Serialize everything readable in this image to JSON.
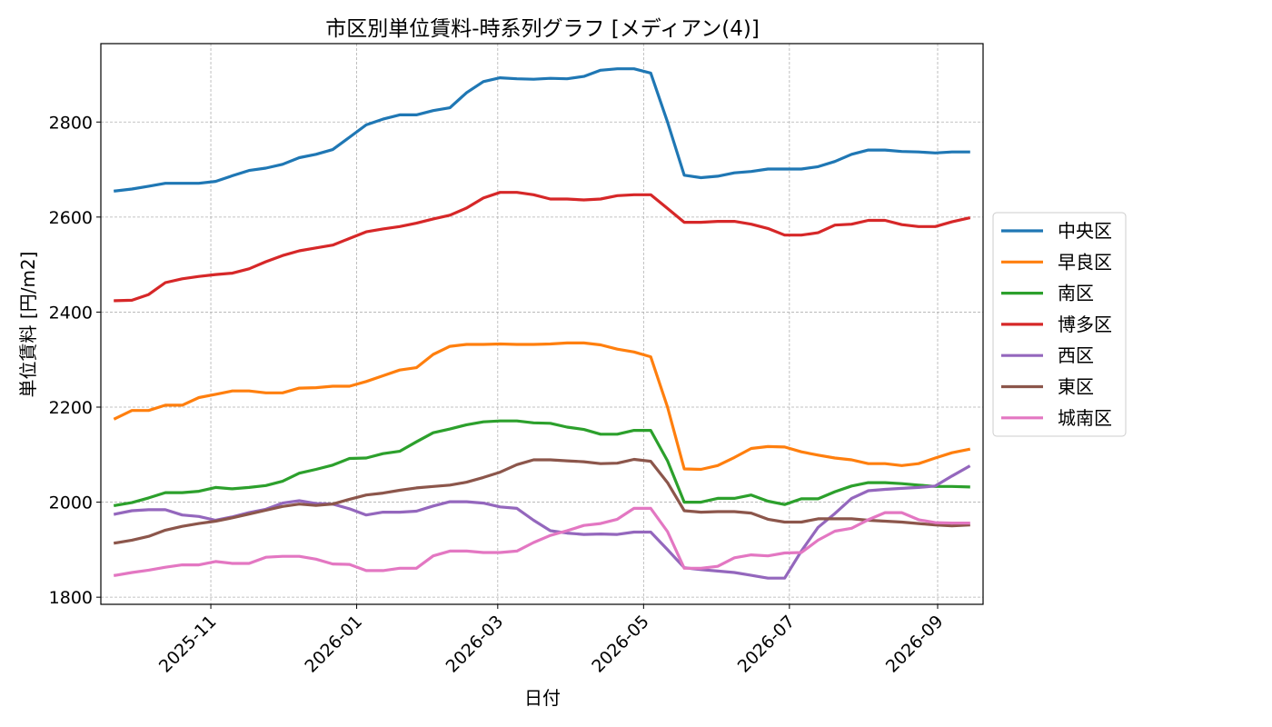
{
  "chart_data": {
    "type": "line",
    "title": "市区別単位賃料-時系列グラフ [メディアン(4)]",
    "xlabel": "日付",
    "ylabel": "単位賃料 [円/m2]",
    "x": [
      "2025-09-22",
      "2025-09-29",
      "2025-10-06",
      "2025-10-13",
      "2025-10-20",
      "2025-10-27",
      "2025-11-03",
      "2025-11-10",
      "2025-11-17",
      "2025-11-24",
      "2025-12-01",
      "2025-12-08",
      "2025-12-15",
      "2025-12-22",
      "2025-12-29",
      "2026-01-05",
      "2026-01-12",
      "2026-01-19",
      "2026-01-26",
      "2026-02-02",
      "2026-02-09",
      "2026-02-16",
      "2026-02-23",
      "2026-03-02",
      "2026-03-09",
      "2026-03-16",
      "2026-03-23",
      "2026-03-30",
      "2026-04-06",
      "2026-04-13",
      "2026-04-20",
      "2026-04-27",
      "2026-05-04",
      "2026-05-11",
      "2026-05-18",
      "2026-05-25",
      "2026-06-01",
      "2026-06-08",
      "2026-06-15",
      "2026-06-22",
      "2026-06-29",
      "2026-07-06",
      "2026-07-13",
      "2026-07-20",
      "2026-07-27",
      "2026-08-03",
      "2026-08-10",
      "2026-08-17",
      "2026-08-24",
      "2026-08-31",
      "2026-09-07",
      "2026-09-14"
    ],
    "xticks": [
      "2025-11",
      "2026-01",
      "2026-03",
      "2026-05",
      "2026-07",
      "2026-09"
    ],
    "xlim": [
      "2025-09-16",
      "2026-09-20"
    ],
    "ylim": [
      1785,
      2965
    ],
    "yticks": [
      1800,
      2000,
      2200,
      2400,
      2600,
      2800
    ],
    "grid": true,
    "legend_position": "outside-right",
    "series": [
      {
        "name": "中央区",
        "color": "#1f77b4",
        "values": [
          2655,
          2659,
          2665,
          2671,
          2671,
          2671,
          2675,
          2687,
          2698,
          2703,
          2711,
          2725,
          2732,
          2742,
          2768,
          2794,
          2806,
          2815,
          2815,
          2824,
          2830,
          2862,
          2885,
          2893,
          2891,
          2890,
          2892,
          2891,
          2896,
          2909,
          2912,
          2912,
          2903,
          2800,
          2688,
          2683,
          2686,
          2693,
          2696,
          2701,
          2701,
          2701,
          2706,
          2717,
          2732,
          2741,
          2741,
          2738,
          2737,
          2735,
          2737,
          2737
        ]
      },
      {
        "name": "早良区",
        "color": "#ff7f0e",
        "values": [
          2176,
          2193,
          2193,
          2204,
          2204,
          2220,
          2227,
          2234,
          2234,
          2230,
          2230,
          2240,
          2241,
          2244,
          2244,
          2254,
          2266,
          2278,
          2283,
          2311,
          2328,
          2332,
          2332,
          2333,
          2332,
          2332,
          2333,
          2335,
          2335,
          2331,
          2322,
          2316,
          2306,
          2200,
          2070,
          2069,
          2077,
          2094,
          2113,
          2117,
          2116,
          2106,
          2099,
          2093,
          2089,
          2081,
          2081,
          2077,
          2081,
          2093,
          2104,
          2111
        ]
      },
      {
        "name": "南区",
        "color": "#2ca02c",
        "values": [
          1993,
          1999,
          2009,
          2020,
          2020,
          2023,
          2031,
          2028,
          2031,
          2035,
          2044,
          2061,
          2069,
          2078,
          2092,
          2093,
          2102,
          2107,
          2127,
          2146,
          2154,
          2163,
          2169,
          2171,
          2171,
          2167,
          2166,
          2158,
          2153,
          2143,
          2143,
          2151,
          2151,
          2087,
          2000,
          2000,
          2008,
          2008,
          2015,
          2002,
          1995,
          2007,
          2007,
          2022,
          2034,
          2041,
          2041,
          2039,
          2036,
          2033,
          2033,
          2032
        ]
      },
      {
        "name": "博多区",
        "color": "#d62728",
        "values": [
          2424,
          2425,
          2437,
          2462,
          2470,
          2475,
          2479,
          2482,
          2491,
          2506,
          2519,
          2529,
          2535,
          2541,
          2555,
          2569,
          2575,
          2580,
          2587,
          2596,
          2604,
          2619,
          2640,
          2652,
          2652,
          2647,
          2638,
          2638,
          2636,
          2638,
          2645,
          2647,
          2647,
          2618,
          2589,
          2589,
          2591,
          2591,
          2585,
          2576,
          2562,
          2562,
          2567,
          2583,
          2585,
          2593,
          2593,
          2584,
          2580,
          2580,
          2590,
          2598
        ]
      },
      {
        "name": "西区",
        "color": "#9467bd",
        "values": [
          1975,
          1982,
          1984,
          1984,
          1973,
          1970,
          1962,
          1969,
          1978,
          1985,
          1998,
          2003,
          1997,
          1996,
          1986,
          1973,
          1979,
          1979,
          1981,
          1992,
          2001,
          2001,
          1998,
          1990,
          1987,
          1962,
          1940,
          1935,
          1932,
          1933,
          1932,
          1937,
          1937,
          1900,
          1862,
          1858,
          1855,
          1852,
          1846,
          1840,
          1840,
          1897,
          1947,
          1976,
          2008,
          2024,
          2027,
          2029,
          2031,
          2034,
          2055,
          2075
        ]
      },
      {
        "name": "東区",
        "color": "#8c564b",
        "values": [
          1914,
          1920,
          1928,
          1941,
          1949,
          1955,
          1960,
          1967,
          1975,
          1983,
          1991,
          1996,
          1993,
          1996,
          2006,
          2015,
          2019,
          2025,
          2030,
          2033,
          2036,
          2042,
          2052,
          2063,
          2079,
          2089,
          2089,
          2087,
          2085,
          2081,
          2082,
          2090,
          2086,
          2041,
          1982,
          1979,
          1980,
          1980,
          1977,
          1964,
          1958,
          1958,
          1965,
          1965,
          1965,
          1962,
          1960,
          1958,
          1955,
          1952,
          1950,
          1952
        ]
      },
      {
        "name": "城南区",
        "color": "#e377c2",
        "values": [
          1846,
          1852,
          1857,
          1863,
          1868,
          1868,
          1875,
          1871,
          1871,
          1884,
          1886,
          1886,
          1880,
          1870,
          1869,
          1856,
          1856,
          1861,
          1861,
          1887,
          1897,
          1897,
          1894,
          1894,
          1897,
          1915,
          1930,
          1940,
          1951,
          1955,
          1964,
          1987,
          1987,
          1938,
          1861,
          1861,
          1865,
          1883,
          1889,
          1887,
          1893,
          1894,
          1920,
          1939,
          1945,
          1963,
          1978,
          1978,
          1963,
          1957,
          1956,
          1956
        ]
      }
    ]
  }
}
